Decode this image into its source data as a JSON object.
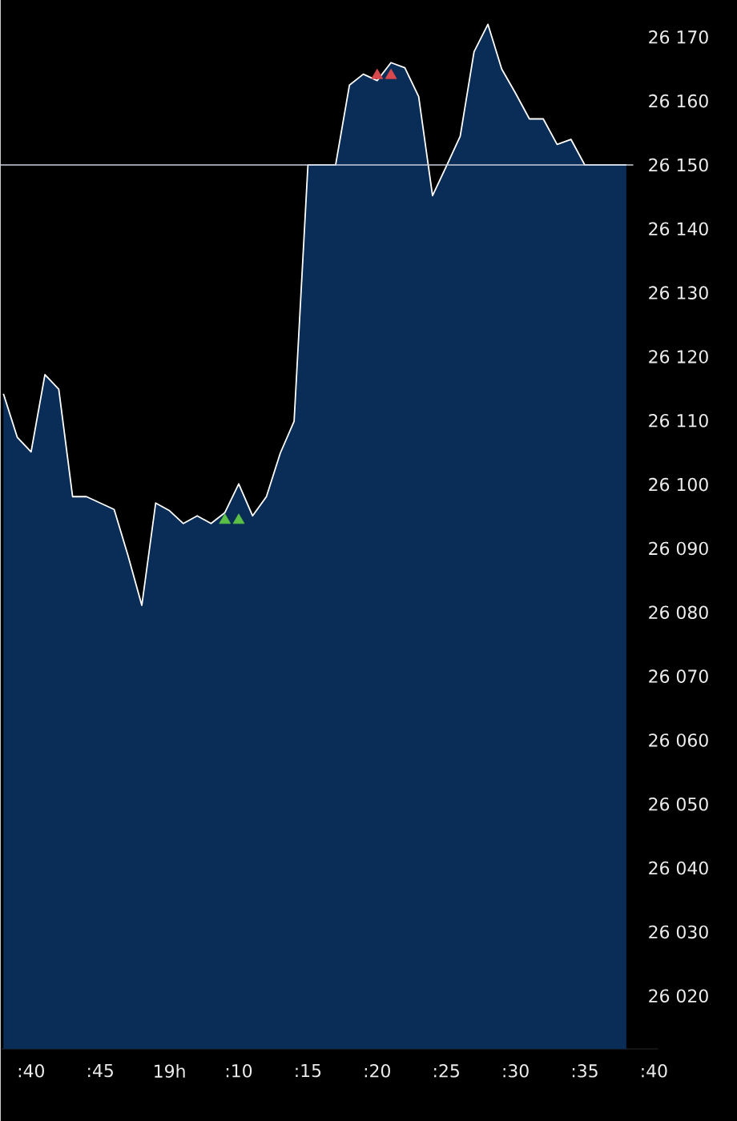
{
  "chart_data": {
    "type": "area",
    "categories": [
      null,
      null,
      ":40",
      null,
      null,
      null,
      null,
      ":45",
      null,
      null,
      null,
      null,
      "19h",
      null,
      null,
      null,
      null,
      ":10",
      null,
      null,
      null,
      null,
      ":15",
      null,
      null,
      null,
      null,
      ":20",
      null,
      null,
      null,
      null,
      ":25",
      null,
      null,
      null,
      null,
      ":30",
      null,
      null,
      null,
      null,
      ":35",
      null,
      null,
      null,
      null,
      ":40"
    ],
    "ylim": [
      26011.7,
      26175.8
    ],
    "yticks": [
      {
        "value": 26020,
        "label": "26 020"
      },
      {
        "value": 26030,
        "label": "26 030"
      },
      {
        "value": 26040,
        "label": "26 040"
      },
      {
        "value": 26050,
        "label": "26 050"
      },
      {
        "value": 26060,
        "label": "26 060"
      },
      {
        "value": 26070,
        "label": "26 070"
      },
      {
        "value": 26080,
        "label": "26 080"
      },
      {
        "value": 26090,
        "label": "26 090"
      },
      {
        "value": 26100,
        "label": "26 100"
      },
      {
        "value": 26110,
        "label": "26 110"
      },
      {
        "value": 26120,
        "label": "26 120"
      },
      {
        "value": 26130,
        "label": "26 130"
      },
      {
        "value": 26140,
        "label": "26 140"
      },
      {
        "value": 26150,
        "label": "26 150"
      },
      {
        "value": 26160,
        "label": "26 160"
      },
      {
        "value": 26170,
        "label": "26 170"
      }
    ],
    "grid": false,
    "ref_lines": [
      {
        "axis": "y",
        "value": 26150,
        "color": "#c8d0e0"
      }
    ],
    "series": [
      {
        "color": "#0a2d57",
        "values": [
          26114.2,
          26107.4,
          26105.1,
          26117.2,
          26114.9,
          26098.1,
          26098.1,
          26097.1,
          26096.1,
          26088.9,
          26081.1,
          26097.1,
          26095.9,
          26093.9,
          26095.1,
          26093.9,
          26095.6,
          26100.1,
          26095.1,
          26098.1,
          26104.9,
          26109.9,
          26150.0,
          26150.0,
          26150.0,
          26162.5,
          26164.2,
          26163.2,
          26166.0,
          26165.2,
          26160.7,
          26145.2,
          26149.8,
          26154.5,
          26167.7,
          26172.0,
          26165.0,
          26161.2,
          26157.2,
          26157.2,
          26153.2,
          26154.0,
          26150.0,
          26150.0,
          26150.0,
          26150.0,
          null,
          null
        ]
      },
      {
        "type": "scatter",
        "marker": "triangle",
        "color": "#5cc046",
        "values": [
          null,
          null,
          null,
          null,
          null,
          null,
          null,
          null,
          null,
          null,
          null,
          null,
          null,
          null,
          null,
          null,
          26094.4,
          26094.4,
          null,
          null,
          null,
          null,
          null,
          null,
          null,
          null,
          null,
          null,
          null,
          null,
          null,
          null,
          null,
          null,
          null,
          null,
          null,
          null,
          null,
          null,
          null,
          null,
          null,
          null,
          null,
          null,
          null,
          null
        ]
      },
      {
        "type": "scatter",
        "marker": "triangle",
        "color": "#d9484c",
        "values": [
          null,
          null,
          null,
          null,
          null,
          null,
          null,
          null,
          null,
          null,
          null,
          null,
          null,
          null,
          null,
          null,
          null,
          null,
          null,
          null,
          null,
          null,
          null,
          null,
          null,
          null,
          null,
          26164.0,
          26164.0,
          null,
          null,
          null,
          null,
          null,
          null,
          null,
          null,
          null,
          null,
          null,
          null,
          null,
          null,
          null,
          null,
          null,
          null,
          null
        ]
      }
    ]
  }
}
